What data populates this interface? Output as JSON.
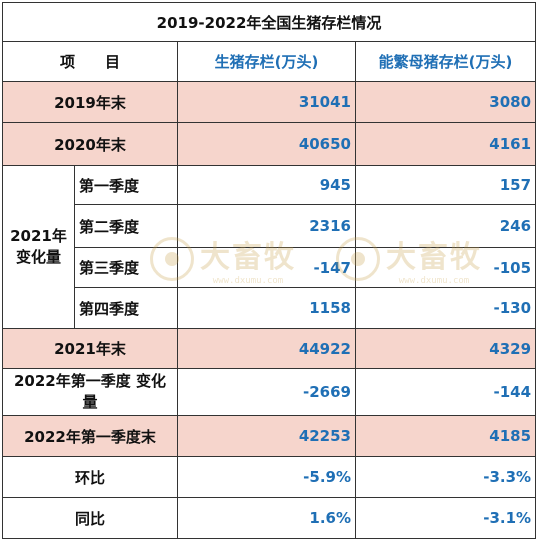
{
  "title": "2019-2022年全国生猪存栏情况",
  "headers": {
    "item": "项　　目",
    "hog": "生猪存栏(万头)",
    "sow": "能繁母猪存栏(万头)"
  },
  "rows": {
    "y2019": {
      "label": "2019年末",
      "hog": "31041",
      "sow": "3080"
    },
    "y2020": {
      "label": "2020年末",
      "hog": "40650",
      "sow": "4161"
    },
    "change2021": {
      "group_label": "2021年\n变化量",
      "q1": {
        "label": "第一季度",
        "hog": "945",
        "sow": "157"
      },
      "q2": {
        "label": "第二季度",
        "hog": "2316",
        "sow": "246"
      },
      "q3": {
        "label": "第三季度",
        "hog": "-147",
        "sow": "-105"
      },
      "q4": {
        "label": "第四季度",
        "hog": "1158",
        "sow": "-130"
      }
    },
    "y2021": {
      "label": "2021年末",
      "hog": "44922",
      "sow": "4329"
    },
    "q1_2022_change": {
      "label": "2022年第一季度\n变化量",
      "hog": "-2669",
      "sow": "-144"
    },
    "q1_2022_end": {
      "label": "2022年第一季度末",
      "hog": "42253",
      "sow": "4185"
    },
    "qoq": {
      "label": "环比",
      "hog": "-5.9%",
      "sow": "-3.3%"
    },
    "yoy": {
      "label": "同比",
      "hog": "1.6%",
      "sow": "-3.1%"
    }
  },
  "watermark": {
    "name": "大畜牧",
    "url": "www.dxumu.com"
  },
  "colors": {
    "highlight_row": "#f6d5cc",
    "number_text": "#1f6fb5",
    "border": "#333333"
  }
}
